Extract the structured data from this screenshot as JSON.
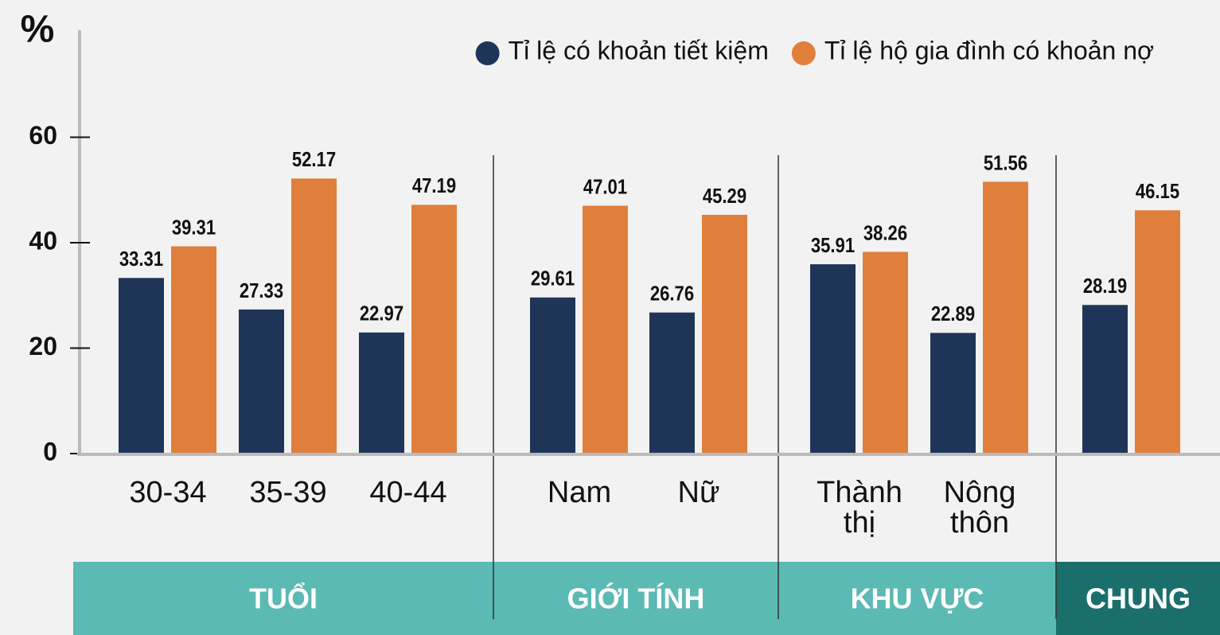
{
  "chart_data": {
    "type": "bar",
    "y_label": "%",
    "categories": [
      "30-34",
      "35-39",
      "40-44",
      "Nam",
      "Nữ",
      "Thành thị",
      "Nông thôn",
      null
    ],
    "groups": [
      "TUỔI",
      "GIỚI TÍNH",
      "KHU VỰC",
      "CHUNG"
    ],
    "series": [
      {
        "name": "Tỉ lệ có khoản tiết kiệm",
        "color": "#1f3558",
        "values": [
          33.31,
          27.33,
          22.97,
          29.61,
          26.76,
          35.91,
          22.89,
          28.19
        ]
      },
      {
        "name": "Tỉ lệ hộ gia đình có khoản nợ",
        "color": "#e07f3c",
        "values": [
          39.31,
          52.17,
          47.19,
          47.01,
          45.29,
          38.26,
          51.56,
          46.15
        ]
      }
    ],
    "ylim": [
      0,
      80
    ],
    "yticks": [
      0,
      20,
      40,
      60
    ],
    "legend": "top-right"
  }
}
